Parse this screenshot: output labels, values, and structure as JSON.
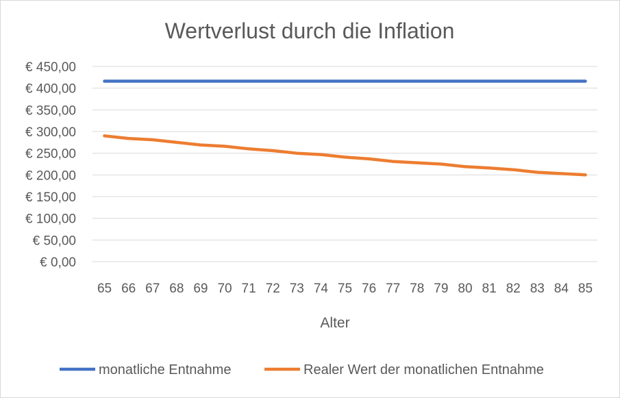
{
  "chart_data": {
    "type": "line",
    "title": "Wertverlust durch die Inflation",
    "xlabel": "Alter",
    "ylabel": "",
    "x": [
      "65",
      "66",
      "67",
      "68",
      "69",
      "70",
      "71",
      "72",
      "73",
      "74",
      "75",
      "76",
      "77",
      "78",
      "79",
      "80",
      "81",
      "82",
      "83",
      "84",
      "85"
    ],
    "y_ticks": [
      "€ 0,00",
      "€ 50,00",
      "€ 100,00",
      "€ 150,00",
      "€ 200,00",
      "€ 250,00",
      "€ 300,00",
      "€ 350,00",
      "€ 400,00",
      "€ 450,00"
    ],
    "ylim": [
      0,
      450
    ],
    "grid": true,
    "legend_position": "bottom",
    "series": [
      {
        "name": "monatliche Entnahme",
        "color": "#4472C4",
        "values": [
          416,
          416,
          416,
          416,
          416,
          416,
          416,
          416,
          416,
          416,
          416,
          416,
          416,
          416,
          416,
          416,
          416,
          416,
          416,
          416,
          416
        ]
      },
      {
        "name": "Realer Wert der monatlichen Entnahme",
        "color": "#ED7D31",
        "values": [
          290,
          284,
          281,
          275,
          269,
          266,
          260,
          256,
          250,
          247,
          241,
          237,
          231,
          228,
          225,
          219,
          216,
          212,
          206,
          203,
          200
        ]
      }
    ]
  }
}
